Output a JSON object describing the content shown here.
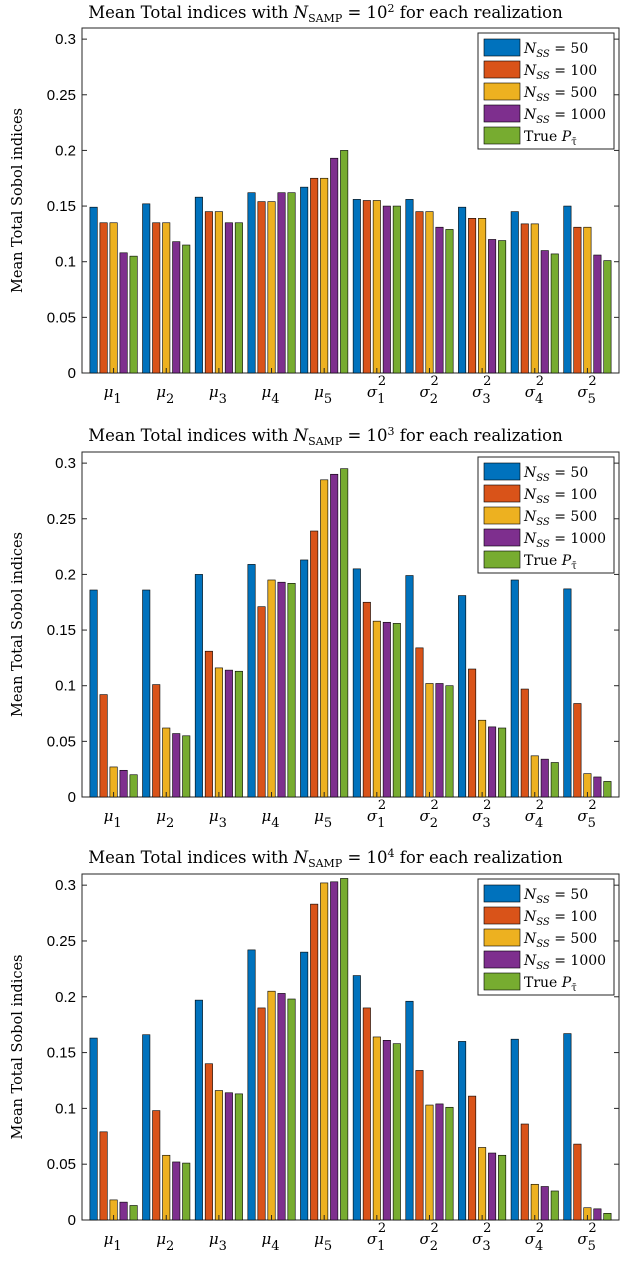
{
  "figure": {
    "colors": [
      "#0072BD",
      "#D95319",
      "#EDB120",
      "#7E2F8E",
      "#77AC30"
    ],
    "legend_placement": "top-right"
  },
  "chart_data": [
    {
      "type": "bar",
      "title_parts": [
        "Mean Total indices with ",
        "N",
        "SAMP",
        " = 10",
        "2",
        " for each realization"
      ],
      "ylabel": "Mean Total Sobol indices",
      "ylim": [
        0,
        0.31
      ],
      "yticks": [
        "0",
        "0.05",
        "0.1",
        "0.15",
        "0.2",
        "0.25",
        "0.3"
      ],
      "categories": [
        {
          "base": "μ",
          "sub": "1",
          "sup": ""
        },
        {
          "base": "μ",
          "sub": "2",
          "sup": ""
        },
        {
          "base": "μ",
          "sub": "3",
          "sup": ""
        },
        {
          "base": "μ",
          "sub": "4",
          "sup": ""
        },
        {
          "base": "μ",
          "sub": "5",
          "sup": ""
        },
        {
          "base": "σ",
          "sub": "1",
          "sup": "2"
        },
        {
          "base": "σ",
          "sub": "2",
          "sup": "2"
        },
        {
          "base": "σ",
          "sub": "3",
          "sup": "2"
        },
        {
          "base": "σ",
          "sub": "4",
          "sup": "2"
        },
        {
          "base": "σ",
          "sub": "5",
          "sup": "2"
        }
      ],
      "series": [
        {
          "name": "N_SS = 50",
          "legend": {
            "var": "N",
            "sub": "SS",
            "rest": " = 50"
          },
          "values": [
            0.149,
            0.152,
            0.158,
            0.162,
            0.167,
            0.156,
            0.156,
            0.149,
            0.145,
            0.15
          ]
        },
        {
          "name": "N_SS = 100",
          "legend": {
            "var": "N",
            "sub": "SS",
            "rest": " = 100"
          },
          "values": [
            0.135,
            0.135,
            0.145,
            0.154,
            0.175,
            0.155,
            0.145,
            0.139,
            0.134,
            0.131
          ]
        },
        {
          "name": "N_SS = 500",
          "legend": {
            "var": "N",
            "sub": "SS",
            "rest": " = 500"
          },
          "values": [
            0.135,
            0.135,
            0.145,
            0.154,
            0.175,
            0.155,
            0.145,
            0.139,
            0.134,
            0.131
          ]
        },
        {
          "name": "N_SS = 1000",
          "legend": {
            "var": "N",
            "sub": "SS",
            "rest": " = 1000"
          },
          "values": [
            0.108,
            0.118,
            0.135,
            0.162,
            0.193,
            0.15,
            0.131,
            0.12,
            0.11,
            0.106
          ]
        },
        {
          "name": "True P_τ̄",
          "legend": {
            "var": "True ",
            "sub": "",
            "rest": "",
            "p": "P",
            "psub": "τ̄"
          },
          "values": [
            0.105,
            0.115,
            0.135,
            0.162,
            0.2,
            0.15,
            0.129,
            0.119,
            0.107,
            0.101
          ]
        }
      ]
    },
    {
      "type": "bar",
      "title_parts": [
        "Mean Total indices with ",
        "N",
        "SAMP",
        " = 10",
        "3",
        " for each realization"
      ],
      "ylabel": "Mean Total Sobol indices",
      "ylim": [
        0,
        0.31
      ],
      "yticks": [
        "0",
        "0.05",
        "0.1",
        "0.15",
        "0.2",
        "0.25",
        "0.3"
      ],
      "categories": [
        {
          "base": "μ",
          "sub": "1",
          "sup": ""
        },
        {
          "base": "μ",
          "sub": "2",
          "sup": ""
        },
        {
          "base": "μ",
          "sub": "3",
          "sup": ""
        },
        {
          "base": "μ",
          "sub": "4",
          "sup": ""
        },
        {
          "base": "μ",
          "sub": "5",
          "sup": ""
        },
        {
          "base": "σ",
          "sub": "1",
          "sup": "2"
        },
        {
          "base": "σ",
          "sub": "2",
          "sup": "2"
        },
        {
          "base": "σ",
          "sub": "3",
          "sup": "2"
        },
        {
          "base": "σ",
          "sub": "4",
          "sup": "2"
        },
        {
          "base": "σ",
          "sub": "5",
          "sup": "2"
        }
      ],
      "series": [
        {
          "name": "N_SS = 50",
          "legend": {
            "var": "N",
            "sub": "SS",
            "rest": " = 50"
          },
          "values": [
            0.186,
            0.186,
            0.2,
            0.209,
            0.213,
            0.205,
            0.199,
            0.181,
            0.195,
            0.187
          ]
        },
        {
          "name": "N_SS = 100",
          "legend": {
            "var": "N",
            "sub": "SS",
            "rest": " = 100"
          },
          "values": [
            0.092,
            0.101,
            0.131,
            0.171,
            0.239,
            0.175,
            0.134,
            0.115,
            0.097,
            0.084
          ]
        },
        {
          "name": "N_SS = 500",
          "legend": {
            "var": "N",
            "sub": "SS",
            "rest": " = 500"
          },
          "values": [
            0.027,
            0.062,
            0.116,
            0.195,
            0.285,
            0.158,
            0.102,
            0.069,
            0.037,
            0.021
          ]
        },
        {
          "name": "N_SS = 1000",
          "legend": {
            "var": "N",
            "sub": "SS",
            "rest": " = 1000"
          },
          "values": [
            0.024,
            0.057,
            0.114,
            0.193,
            0.29,
            0.157,
            0.102,
            0.063,
            0.034,
            0.018
          ]
        },
        {
          "name": "True P_τ̄",
          "legend": {
            "var": "True ",
            "sub": "",
            "rest": "",
            "p": "P",
            "psub": "τ̄"
          },
          "values": [
            0.02,
            0.055,
            0.113,
            0.192,
            0.295,
            0.156,
            0.1,
            0.062,
            0.031,
            0.014
          ]
        }
      ]
    },
    {
      "type": "bar",
      "title_parts": [
        "Mean Total indices with ",
        "N",
        "SAMP",
        " = 10",
        "4",
        " for each realization"
      ],
      "ylabel": "Mean Total Sobol indices",
      "ylim": [
        0,
        0.31
      ],
      "yticks": [
        "0",
        "0.05",
        "0.1",
        "0.15",
        "0.2",
        "0.25",
        "0.3"
      ],
      "categories": [
        {
          "base": "μ",
          "sub": "1",
          "sup": ""
        },
        {
          "base": "μ",
          "sub": "2",
          "sup": ""
        },
        {
          "base": "μ",
          "sub": "3",
          "sup": ""
        },
        {
          "base": "μ",
          "sub": "4",
          "sup": ""
        },
        {
          "base": "μ",
          "sub": "5",
          "sup": ""
        },
        {
          "base": "σ",
          "sub": "1",
          "sup": "2"
        },
        {
          "base": "σ",
          "sub": "2",
          "sup": "2"
        },
        {
          "base": "σ",
          "sub": "3",
          "sup": "2"
        },
        {
          "base": "σ",
          "sub": "4",
          "sup": "2"
        },
        {
          "base": "σ",
          "sub": "5",
          "sup": "2"
        }
      ],
      "series": [
        {
          "name": "N_SS = 50",
          "legend": {
            "var": "N",
            "sub": "SS",
            "rest": " = 50"
          },
          "values": [
            0.163,
            0.166,
            0.197,
            0.242,
            0.24,
            0.219,
            0.196,
            0.16,
            0.162,
            0.167
          ]
        },
        {
          "name": "N_SS = 100",
          "legend": {
            "var": "N",
            "sub": "SS",
            "rest": " = 100"
          },
          "values": [
            0.079,
            0.098,
            0.14,
            0.19,
            0.283,
            0.19,
            0.134,
            0.111,
            0.086,
            0.068
          ]
        },
        {
          "name": "N_SS = 500",
          "legend": {
            "var": "N",
            "sub": "SS",
            "rest": " = 500"
          },
          "values": [
            0.018,
            0.058,
            0.116,
            0.205,
            0.302,
            0.164,
            0.103,
            0.065,
            0.032,
            0.011
          ]
        },
        {
          "name": "N_SS = 1000",
          "legend": {
            "var": "N",
            "sub": "SS",
            "rest": " = 1000"
          },
          "values": [
            0.016,
            0.052,
            0.114,
            0.203,
            0.303,
            0.161,
            0.104,
            0.06,
            0.03,
            0.01
          ]
        },
        {
          "name": "True P_τ̄",
          "legend": {
            "var": "True ",
            "sub": "",
            "rest": "",
            "p": "P",
            "psub": "τ̄"
          },
          "values": [
            0.013,
            0.051,
            0.113,
            0.198,
            0.306,
            0.158,
            0.101,
            0.058,
            0.026,
            0.006
          ]
        }
      ]
    }
  ]
}
